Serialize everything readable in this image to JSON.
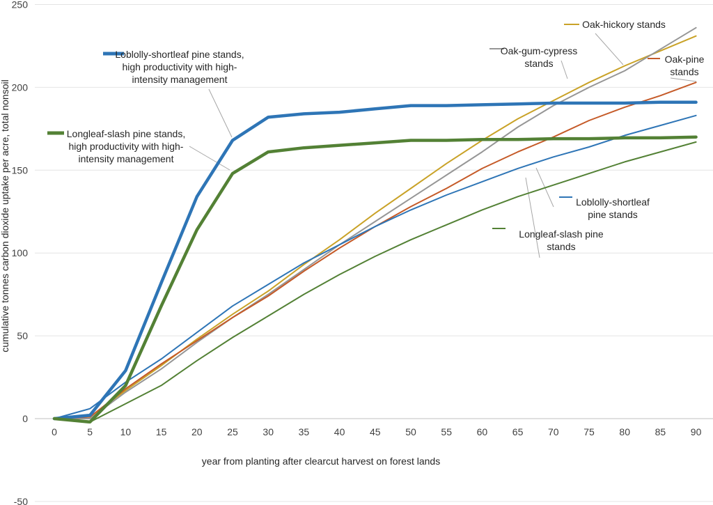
{
  "chart_data": {
    "type": "line",
    "xlabel": "year from planting after clearcut harvest on forest lands",
    "ylabel": "cumulative tonnes carbon dioxide uptake per acre, total nonsoil",
    "ylim": [
      -50,
      250
    ],
    "yticks": [
      -50,
      0,
      50,
      100,
      150,
      200,
      250
    ],
    "x": [
      0,
      5,
      10,
      15,
      20,
      25,
      30,
      35,
      40,
      45,
      50,
      55,
      60,
      65,
      70,
      75,
      80,
      85,
      90
    ],
    "grid": "horizontal",
    "legend": "inline labels with leader lines",
    "series": [
      {
        "name": "Loblolly-shortleaf pine stands, high productivity with high-intensity management",
        "color": "#2E75B6",
        "width": 4,
        "values": [
          0,
          2,
          29,
          82,
          134,
          168,
          182,
          184,
          185,
          187,
          189,
          189,
          189.5,
          190,
          190.5,
          190.5,
          190.5,
          191,
          191
        ]
      },
      {
        "name": "Longleaf-slash pine stands, high productivity with high-intensity management",
        "color": "#538135",
        "width": 4,
        "values": [
          0,
          -2,
          20,
          68,
          114,
          148,
          161,
          163.5,
          165,
          166.5,
          168,
          168,
          168.5,
          168.5,
          169,
          169,
          169.5,
          169.5,
          170
        ]
      },
      {
        "name": "Oak-hickory stands",
        "color": "#C9A227",
        "width": 2,
        "values": [
          0,
          1,
          17,
          32,
          48,
          63,
          77,
          93,
          108,
          124,
          139,
          154,
          168,
          181,
          192,
          203,
          213,
          222,
          231
        ]
      },
      {
        "name": "Oak-gum-cypress stands",
        "color": "#969696",
        "width": 2,
        "values": [
          0,
          0,
          16,
          30,
          46,
          61,
          75,
          90,
          105,
          119,
          133,
          147,
          161,
          176,
          189,
          200,
          210,
          223,
          236
        ]
      },
      {
        "name": "Oak-pine stands",
        "color": "#C55A28",
        "width": 2,
        "values": [
          0,
          1,
          18,
          33,
          47,
          61,
          74,
          89,
          103,
          116,
          128,
          139,
          151,
          161,
          170,
          180,
          188,
          195,
          203
        ]
      },
      {
        "name": "Loblolly-shortleaf pine stands",
        "color": "#2E75B6",
        "width": 2,
        "values": [
          0,
          6,
          22,
          36,
          52,
          68,
          81,
          94,
          105,
          116,
          126,
          135,
          143,
          151,
          158,
          164,
          171,
          177,
          183
        ]
      },
      {
        "name": "Longleaf-slash pine stands",
        "color": "#538135",
        "width": 2,
        "values": [
          0,
          -2,
          9,
          20,
          35,
          49,
          62,
          75,
          87,
          98,
          108,
          117,
          126,
          134,
          141,
          148,
          155,
          161,
          167
        ]
      }
    ],
    "annotations": [
      {
        "id": "lob-hi",
        "lines": [
          "Loblolly-shortleaf pine stands,",
          "high productivity with high-",
          "intensity management"
        ]
      },
      {
        "id": "long-hi",
        "lines": [
          "Longleaf-slash pine stands,",
          "high productivity with high-",
          "intensity management"
        ]
      },
      {
        "id": "oak-hickory",
        "lines": [
          "Oak-hickory stands"
        ]
      },
      {
        "id": "oak-gum",
        "lines": [
          "Oak-gum-cypress",
          "stands"
        ]
      },
      {
        "id": "oak-pine",
        "lines": [
          "Oak-pine",
          "stands"
        ]
      },
      {
        "id": "lob",
        "lines": [
          "Loblolly-shortleaf",
          "pine stands"
        ]
      },
      {
        "id": "long",
        "lines": [
          "Longleaf-slash pine",
          "stands"
        ]
      }
    ]
  }
}
